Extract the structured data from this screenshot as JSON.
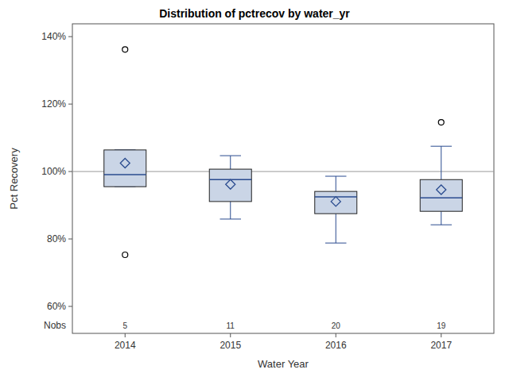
{
  "chart_data": {
    "type": "box",
    "title": "Distribution of pctrecov by water_yr",
    "x_label": "Water Year",
    "y_label": "Pct Recovery",
    "categories": [
      "2014",
      "2015",
      "2016",
      "2017"
    ],
    "color": "#cad5e6",
    "boxes": [
      {
        "whisker_low": 95.5,
        "q1": 95.5,
        "median": 99.1,
        "q3": 106.4,
        "whisker_high": 106.4,
        "mean": 102.5,
        "outliers": [
          136.2,
          75.3
        ]
      },
      {
        "whisker_low": 85.9,
        "q1": 91.1,
        "median": 97.6,
        "q3": 100.7,
        "whisker_high": 104.7,
        "mean": 96.2,
        "outliers": []
      },
      {
        "whisker_low": 78.8,
        "q1": 87.5,
        "median": 92.5,
        "q3": 94.1,
        "whisker_high": 98.6,
        "mean": 91.1,
        "outliers": []
      },
      {
        "whisker_low": 84.2,
        "q1": 88.2,
        "median": 92.2,
        "q3": 97.6,
        "whisker_high": 107.5,
        "mean": 94.6,
        "outliers": [
          114.6
        ]
      }
    ],
    "reference_line": 100,
    "nobs_label": "Nobs",
    "nobs": [
      5,
      11,
      20,
      19
    ],
    "ylim": [
      52,
      143.8
    ],
    "yticks": [
      {
        "value": 60,
        "label": "60%"
      },
      {
        "value": 80,
        "label": "80%"
      },
      {
        "value": 100,
        "label": "100%"
      },
      {
        "value": 120,
        "label": "120%"
      },
      {
        "value": 140,
        "label": "140%"
      }
    ]
  }
}
